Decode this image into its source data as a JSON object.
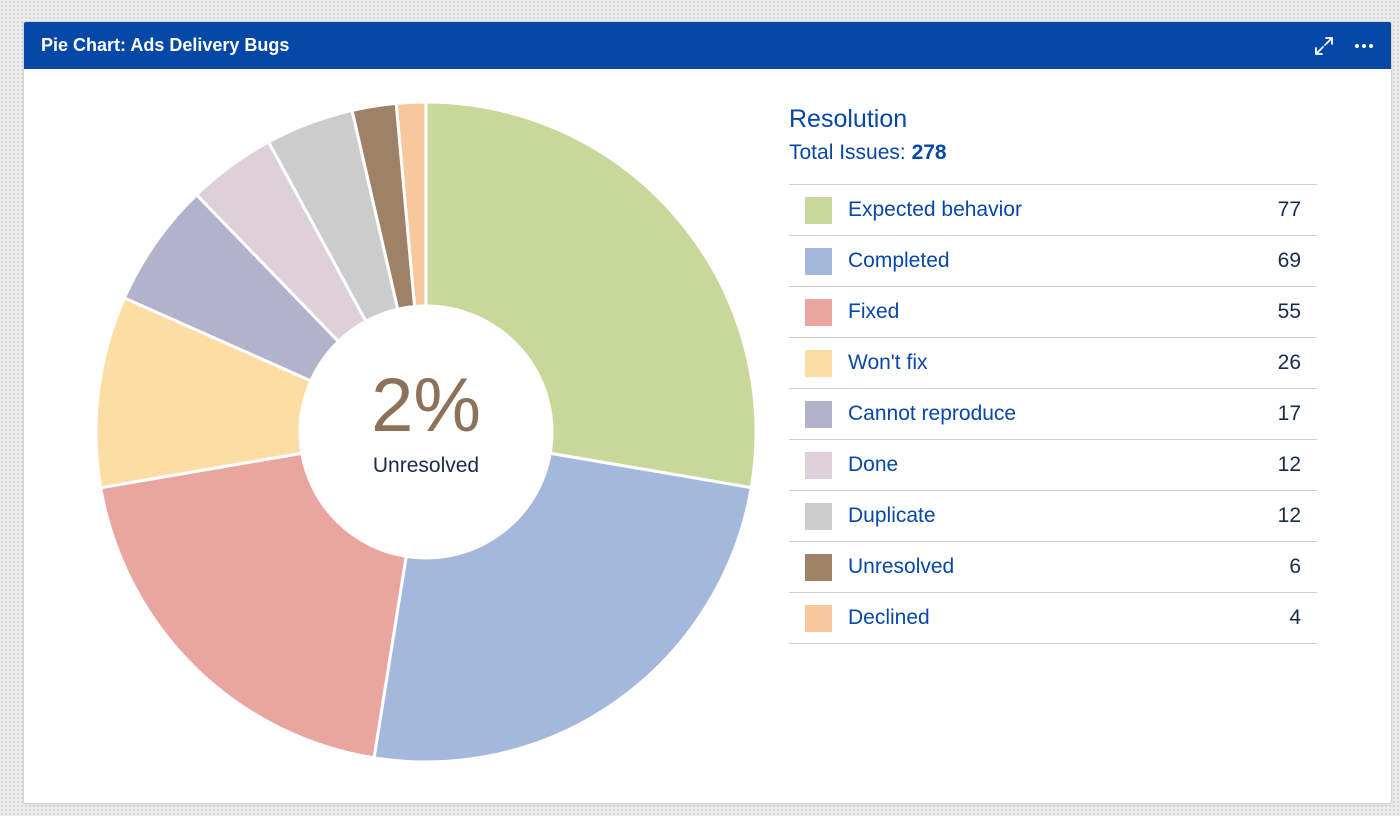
{
  "gadget": {
    "title": "Pie Chart: Ads Delivery Bugs"
  },
  "header_icons": [
    "expand-icon",
    "more-options-icon"
  ],
  "center": {
    "percent": "2%",
    "label": "Unresolved"
  },
  "legend": {
    "title": "Resolution",
    "total_label": "Total Issues:",
    "total_value": "278",
    "items": [
      {
        "label": "Expected behavior",
        "count": "77",
        "color": "#c8d89a"
      },
      {
        "label": "Completed",
        "count": "69",
        "color": "#a4b8dc"
      },
      {
        "label": "Fixed",
        "count": "55",
        "color": "#e9a5a0"
      },
      {
        "label": "Won't fix",
        "count": "26",
        "color": "#fcdda3"
      },
      {
        "label": "Cannot reproduce",
        "count": "17",
        "color": "#b4b1cc"
      },
      {
        "label": "Done",
        "count": "12",
        "color": "#ddd0d8"
      },
      {
        "label": "Duplicate",
        "count": "12",
        "color": "#cccccc"
      },
      {
        "label": "Unresolved",
        "count": "6",
        "color": "#9e8166"
      },
      {
        "label": "Declined",
        "count": "4",
        "color": "#f8c89d"
      }
    ]
  },
  "chart_data": {
    "type": "pie",
    "title": "Resolution",
    "categories": [
      "Expected behavior",
      "Completed",
      "Fixed",
      "Won't fix",
      "Cannot reproduce",
      "Done",
      "Duplicate",
      "Unresolved",
      "Declined"
    ],
    "values": [
      77,
      69,
      55,
      26,
      17,
      12,
      12,
      6,
      4
    ],
    "colors": [
      "#c8d89a",
      "#a4b8dc",
      "#e9a5a0",
      "#fcdda3",
      "#b4b1cc",
      "#ddd0d8",
      "#cccccc",
      "#9e8166",
      "#f8c89d"
    ],
    "total": 278,
    "donut": true,
    "legend": "right"
  }
}
